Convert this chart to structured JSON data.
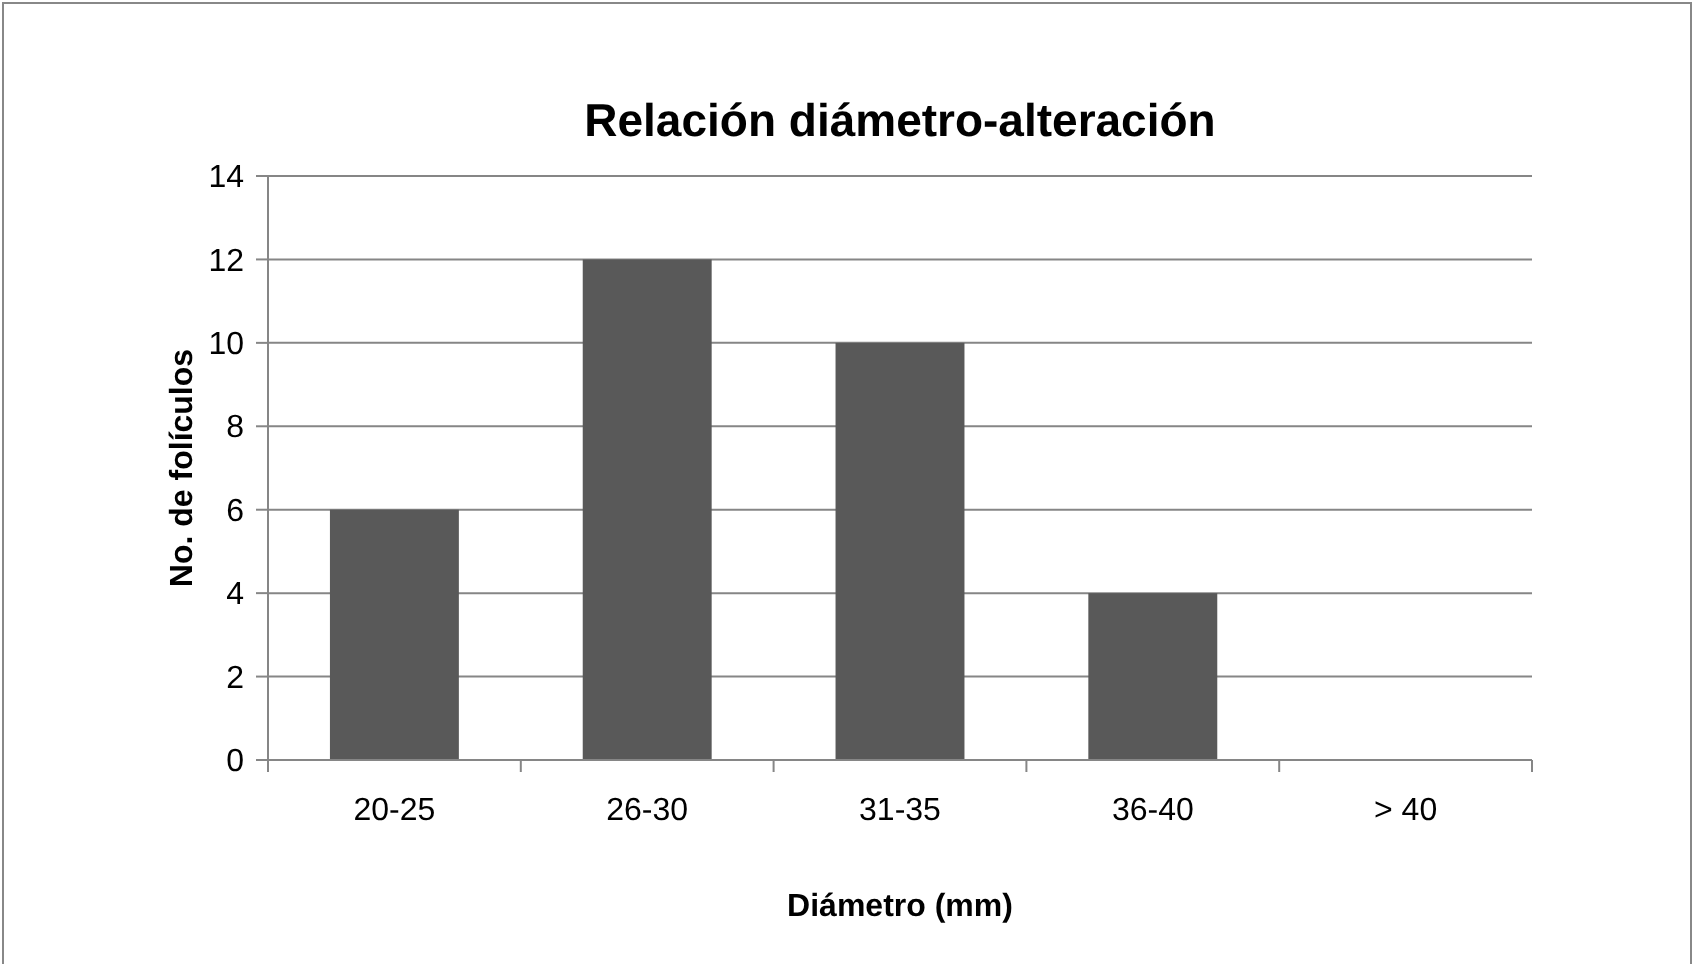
{
  "chart_data": {
    "type": "bar",
    "title": "Relación diámetro-alteración",
    "xlabel": "Diámetro (mm)",
    "ylabel": "No. de folículos",
    "categories": [
      "20-25",
      "26-30",
      "31-35",
      "36-40",
      "> 40"
    ],
    "values": [
      6,
      12,
      10,
      4,
      0
    ],
    "color": "#595959",
    "ylim": [
      0,
      14
    ],
    "yticks": [
      0,
      2,
      4,
      6,
      8,
      10,
      12,
      14
    ],
    "grid": "y"
  }
}
